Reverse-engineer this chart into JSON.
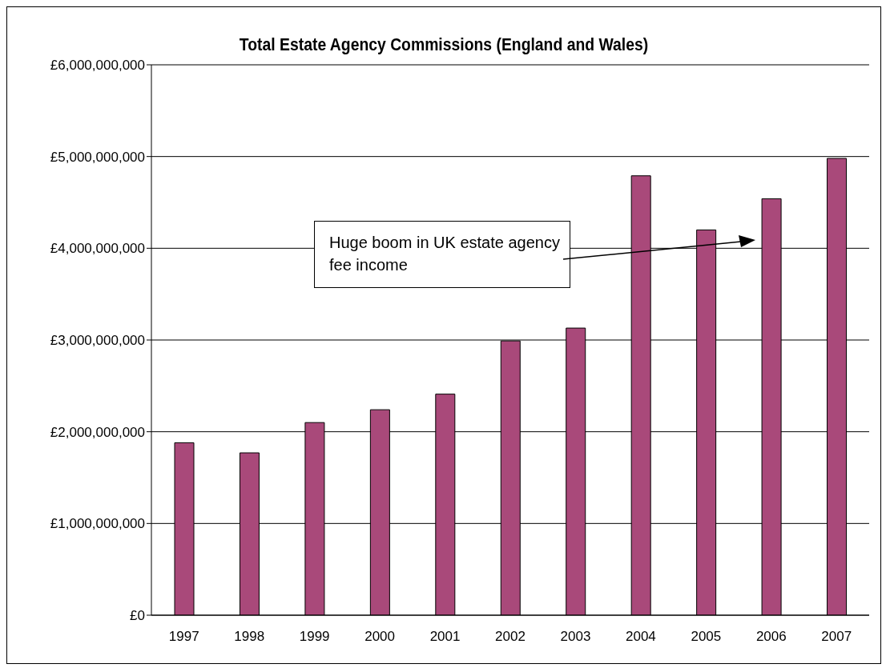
{
  "chart_data": {
    "type": "bar",
    "title": "Total Estate Agency Commissions (England and Wales)",
    "categories": [
      "1997",
      "1998",
      "1999",
      "2000",
      "2001",
      "2002",
      "2003",
      "2004",
      "2005",
      "2006",
      "2007"
    ],
    "values": [
      1880000000,
      1770000000,
      2100000000,
      2240000000,
      2410000000,
      2990000000,
      3130000000,
      4790000000,
      4200000000,
      4540000000,
      4980000000
    ],
    "color": "#a9497a",
    "ylim": [
      0,
      6000000000
    ],
    "yticks": [
      {
        "value": 0,
        "label": "£0"
      },
      {
        "value": 1000000000,
        "label": "£1,000,000,000"
      },
      {
        "value": 2000000000,
        "label": "£2,000,000,000"
      },
      {
        "value": 3000000000,
        "label": "£3,000,000,000"
      },
      {
        "value": 4000000000,
        "label": "£4,000,000,000"
      },
      {
        "value": 5000000000,
        "label": "£5,000,000,000"
      },
      {
        "value": 6000000000,
        "label": "£6,000,000,000"
      }
    ],
    "grid": "y",
    "annotations": [
      "Huge boom in UK estate agency fee income"
    ]
  }
}
